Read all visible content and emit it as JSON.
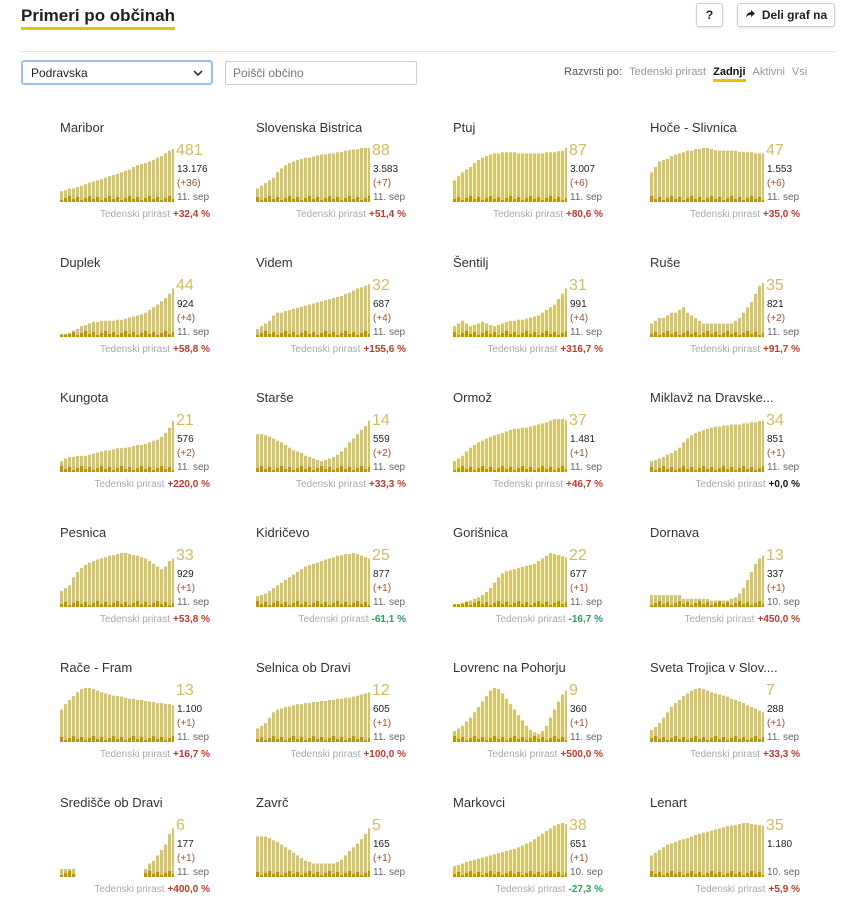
{
  "header": {
    "title": "Primeri po občinah",
    "help_label": "?",
    "share_label": "Deli graf na"
  },
  "filters": {
    "region_selected": "Podravska",
    "search_placeholder": "Poišči občino"
  },
  "sort": {
    "label": "Razvrsti po:",
    "options": [
      "Tedenski prirast",
      "Zadnji",
      "Aktivni",
      "Vsi"
    ],
    "active": "Zadnji"
  },
  "footer_label": "Tedenski prirast",
  "colors": {
    "accent": "#e8c400",
    "bar": "#d4c46a",
    "bar_dark": "#b89a00"
  },
  "municipalities": [
    {
      "name": "Maribor",
      "active": "481",
      "total": "13.176",
      "diff": "(+36)",
      "date": "11. sep",
      "weekly": "+32,4 %",
      "trend": "red",
      "profile": [
        20,
        22,
        25,
        25,
        28,
        30,
        33,
        36,
        38,
        40,
        42,
        45,
        48,
        50,
        52,
        55,
        58,
        60,
        65,
        68,
        70,
        72,
        75,
        78,
        82,
        85,
        90,
        95,
        98,
        100
      ]
    },
    {
      "name": "Slovenska Bistrica",
      "active": "88",
      "total": "3.583",
      "diff": "(+7)",
      "date": "11. sep",
      "weekly": "+51,4 %",
      "trend": "red",
      "profile": [
        25,
        30,
        35,
        40,
        45,
        55,
        62,
        68,
        72,
        75,
        78,
        80,
        82,
        82,
        84,
        86,
        88,
        88,
        90,
        90,
        92,
        93,
        95,
        96,
        97,
        98,
        100,
        100,
        100,
        100
      ]
    },
    {
      "name": "Ptuj",
      "active": "87",
      "total": "3.007",
      "diff": "(+6)",
      "date": "11. sep",
      "weekly": "+80,6 %",
      "trend": "red",
      "profile": [
        40,
        48,
        55,
        60,
        65,
        72,
        78,
        82,
        85,
        88,
        90,
        90,
        92,
        92,
        92,
        92,
        90,
        90,
        90,
        90,
        90,
        90,
        90,
        92,
        92,
        92,
        94,
        95,
        100,
        100
      ]
    },
    {
      "name": "Hoče - Slivnica",
      "active": "47",
      "total": "1.553",
      "diff": "(+6)",
      "date": "11. sep",
      "weekly": "+35,0 %",
      "trend": "red",
      "profile": [
        55,
        65,
        75,
        78,
        80,
        85,
        88,
        90,
        92,
        95,
        95,
        98,
        98,
        100,
        100,
        98,
        96,
        95,
        95,
        95,
        95,
        95,
        93,
        93,
        92,
        92,
        90,
        90,
        90,
        88
      ]
    },
    {
      "name": "Duplek",
      "active": "44",
      "total": "924",
      "diff": "(+4)",
      "date": "11. sep",
      "weekly": "+58,8 %",
      "trend": "red",
      "profile": [
        5,
        5,
        8,
        12,
        15,
        20,
        22,
        25,
        28,
        28,
        30,
        30,
        30,
        30,
        32,
        32,
        34,
        36,
        38,
        40,
        42,
        45,
        50,
        55,
        60,
        66,
        72,
        80,
        90,
        100
      ]
    },
    {
      "name": "Videm",
      "active": "32",
      "total": "687",
      "diff": "(+4)",
      "date": "11. sep",
      "weekly": "+155,6 %",
      "trend": "red",
      "profile": [
        15,
        20,
        25,
        30,
        40,
        45,
        45,
        48,
        50,
        52,
        54,
        56,
        58,
        60,
        62,
        64,
        66,
        68,
        70,
        72,
        74,
        76,
        80,
        82,
        86,
        90,
        92,
        95,
        98,
        100
      ]
    },
    {
      "name": "Šentilj",
      "active": "31",
      "total": "991",
      "diff": "(+4)",
      "date": "11. sep",
      "weekly": "+316,7 %",
      "trend": "red",
      "profile": [
        20,
        25,
        30,
        25,
        20,
        22,
        25,
        28,
        25,
        22,
        20,
        22,
        25,
        28,
        30,
        30,
        32,
        32,
        34,
        36,
        38,
        40,
        45,
        50,
        55,
        60,
        70,
        80,
        90,
        100
      ]
    },
    {
      "name": "Ruše",
      "active": "35",
      "total": "821",
      "diff": "(+2)",
      "date": "11. sep",
      "weekly": "+91,7 %",
      "trend": "red",
      "profile": [
        25,
        30,
        35,
        35,
        40,
        45,
        45,
        50,
        55,
        45,
        40,
        35,
        30,
        25,
        25,
        25,
        25,
        25,
        25,
        25,
        25,
        30,
        35,
        45,
        55,
        65,
        80,
        95,
        100,
        100
      ]
    },
    {
      "name": "Kungota",
      "active": "21",
      "total": "576",
      "diff": "(+2)",
      "date": "11. sep",
      "weekly": "+220,0 %",
      "trend": "red",
      "profile": [
        20,
        25,
        28,
        28,
        30,
        30,
        30,
        32,
        34,
        36,
        38,
        40,
        40,
        42,
        44,
        44,
        45,
        46,
        48,
        50,
        50,
        52,
        55,
        58,
        60,
        65,
        72,
        82,
        95,
        100
      ]
    },
    {
      "name": "Starše",
      "active": "14",
      "total": "559",
      "diff": "(+2)",
      "date": "11. sep",
      "weekly": "+33,3 %",
      "trend": "red",
      "profile": [
        70,
        70,
        68,
        65,
        62,
        58,
        55,
        50,
        45,
        40,
        38,
        35,
        30,
        28,
        25,
        22,
        20,
        22,
        25,
        28,
        32,
        38,
        45,
        55,
        62,
        70,
        78,
        85,
        95,
        100
      ]
    },
    {
      "name": "Ormož",
      "active": "37",
      "total": "1.481",
      "diff": "(+1)",
      "date": "11. sep",
      "weekly": "+46,7 %",
      "trend": "red",
      "profile": [
        20,
        25,
        30,
        38,
        45,
        50,
        55,
        58,
        62,
        65,
        68,
        70,
        72,
        75,
        78,
        80,
        80,
        82,
        82,
        84,
        86,
        88,
        90,
        92,
        95,
        98,
        98,
        98,
        96,
        95
      ]
    },
    {
      "name": "Miklavž na Dravske...",
      "active": "34",
      "total": "851",
      "diff": "(+1)",
      "date": "11. sep",
      "weekly": "+0,0 %",
      "trend": "black",
      "profile": [
        20,
        22,
        25,
        28,
        32,
        35,
        40,
        45,
        55,
        62,
        68,
        72,
        75,
        78,
        80,
        82,
        84,
        84,
        86,
        86,
        88,
        88,
        88,
        90,
        90,
        92,
        92,
        94,
        95,
        96
      ]
    },
    {
      "name": "Pesnica",
      "active": "33",
      "total": "929",
      "diff": "(+1)",
      "date": "11. sep",
      "weekly": "+53,8 %",
      "trend": "red",
      "profile": [
        30,
        35,
        40,
        55,
        65,
        72,
        78,
        82,
        85,
        88,
        90,
        92,
        95,
        96,
        98,
        100,
        100,
        98,
        96,
        95,
        92,
        90,
        85,
        80,
        75,
        70,
        75,
        85,
        90,
        88
      ]
    },
    {
      "name": "Kidričevo",
      "active": "25",
      "total": "877",
      "diff": "(+1)",
      "date": "11. sep",
      "weekly": "-61,1 %",
      "trend": "green",
      "profile": [
        20,
        22,
        25,
        30,
        35,
        40,
        45,
        50,
        55,
        60,
        65,
        70,
        75,
        78,
        80,
        82,
        85,
        88,
        90,
        92,
        95,
        96,
        98,
        98,
        100,
        98,
        95,
        92,
        90,
        88
      ]
    },
    {
      "name": "Gorišnica",
      "active": "22",
      "total": "677",
      "diff": "(+1)",
      "date": "11. sep",
      "weekly": "-16,7 %",
      "trend": "green",
      "profile": [
        5,
        5,
        8,
        10,
        12,
        15,
        18,
        22,
        28,
        35,
        45,
        55,
        62,
        66,
        68,
        70,
        72,
        74,
        76,
        78,
        80,
        85,
        90,
        95,
        100,
        98,
        96,
        94,
        92,
        90
      ]
    },
    {
      "name": "Dornava",
      "active": "13",
      "total": "337",
      "diff": "(+1)",
      "date": "10. sep",
      "weekly": "+450,0 %",
      "trend": "red",
      "profile": [
        22,
        22,
        22,
        22,
        22,
        22,
        22,
        22,
        15,
        15,
        15,
        15,
        15,
        15,
        15,
        12,
        12,
        12,
        12,
        12,
        15,
        18,
        25,
        35,
        50,
        65,
        80,
        90,
        95,
        100
      ]
    },
    {
      "name": "Rače - Fram",
      "active": "13",
      "total": "1.100",
      "diff": "(+1)",
      "date": "11. sep",
      "weekly": "+16,7 %",
      "trend": "red",
      "profile": [
        60,
        70,
        78,
        85,
        92,
        98,
        100,
        100,
        98,
        95,
        92,
        90,
        88,
        86,
        85,
        84,
        82,
        80,
        80,
        78,
        78,
        76,
        75,
        74,
        72,
        72,
        70,
        70,
        68,
        66
      ]
    },
    {
      "name": "Selnica ob Dravi",
      "active": "12",
      "total": "605",
      "diff": "(+1)",
      "date": "11. sep",
      "weekly": "+100,0 %",
      "trend": "red",
      "profile": [
        25,
        30,
        35,
        45,
        55,
        60,
        62,
        65,
        66,
        68,
        70,
        70,
        72,
        72,
        74,
        74,
        76,
        76,
        78,
        78,
        80,
        80,
        82,
        82,
        84,
        86,
        88,
        90,
        92,
        95
      ]
    },
    {
      "name": "Lovrenc na Pohorju",
      "active": "9",
      "total": "360",
      "diff": "(+1)",
      "date": "11. sep",
      "weekly": "+500,0 %",
      "trend": "red",
      "profile": [
        20,
        25,
        30,
        38,
        45,
        55,
        65,
        75,
        85,
        95,
        100,
        98,
        90,
        80,
        70,
        60,
        50,
        40,
        30,
        22,
        18,
        15,
        20,
        30,
        45,
        60,
        75,
        88,
        95,
        100
      ]
    },
    {
      "name": "Sveta Trojica v Slov....",
      "active": "7",
      "total": "288",
      "diff": "(+1)",
      "date": "11. sep",
      "weekly": "+33,3 %",
      "trend": "red",
      "profile": [
        22,
        28,
        35,
        45,
        55,
        65,
        72,
        78,
        85,
        90,
        95,
        98,
        100,
        98,
        95,
        92,
        90,
        88,
        86,
        84,
        80,
        78,
        75,
        72,
        68,
        65,
        62,
        58,
        55,
        52
      ]
    },
    {
      "name": "Središče ob Dravi",
      "active": "6",
      "total": "177",
      "diff": "(+1)",
      "date": "11. sep",
      "weekly": "+400,0 %",
      "trend": "red",
      "profile": [
        15,
        15,
        15,
        15,
        0,
        0,
        0,
        0,
        0,
        0,
        0,
        0,
        0,
        0,
        0,
        0,
        0,
        0,
        0,
        0,
        0,
        15,
        25,
        30,
        40,
        50,
        60,
        80,
        90,
        100
      ]
    },
    {
      "name": "Zavrč",
      "active": "5",
      "total": "165",
      "diff": "(+1)",
      "date": "11. sep",
      "weekly": "",
      "trend": "red",
      "profile": [
        75,
        75,
        75,
        72,
        68,
        65,
        60,
        55,
        50,
        45,
        40,
        35,
        30,
        28,
        25,
        25,
        25,
        25,
        25,
        25,
        28,
        32,
        40,
        48,
        55,
        62,
        70,
        80,
        90,
        100
      ]
    },
    {
      "name": "Markovci",
      "active": "38",
      "total": "651",
      "diff": "(+1)",
      "date": "10. sep",
      "weekly": "-27,3 %",
      "trend": "green",
      "profile": [
        20,
        22,
        25,
        28,
        30,
        32,
        34,
        36,
        38,
        40,
        42,
        44,
        46,
        48,
        50,
        52,
        55,
        58,
        62,
        65,
        70,
        75,
        80,
        85,
        90,
        95,
        98,
        100,
        98,
        95
      ]
    },
    {
      "name": "Lenart",
      "active": "35",
      "total": "1.180",
      "diff": "",
      "date": "10. sep",
      "weekly": "+5,9 %",
      "trend": "red",
      "profile": [
        40,
        45,
        50,
        55,
        60,
        62,
        65,
        68,
        70,
        72,
        75,
        78,
        80,
        82,
        84,
        86,
        88,
        90,
        92,
        94,
        95,
        96,
        98,
        100,
        100,
        98,
        97,
        96,
        95,
        94
      ]
    }
  ]
}
